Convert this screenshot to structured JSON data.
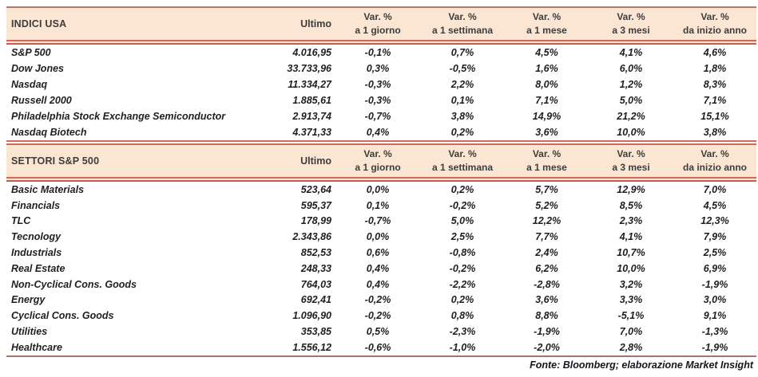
{
  "colors": {
    "band_bg": "#fbe5d3",
    "line_red": "#d2675a",
    "line_muted": "#b1786f",
    "text": "#1f1f1f"
  },
  "columns": {
    "ultimo": "Ultimo",
    "var_top": "Var. %",
    "var_subs": [
      "a 1 giorno",
      "a 1 settimana",
      "a 1 mese",
      "a 3 mesi",
      "da inizio anno"
    ]
  },
  "tables": [
    {
      "title": "INDICI USA",
      "rows": [
        {
          "label": "S&P 500",
          "ultimo": "4.016,95",
          "vars": [
            "-0,1%",
            "0,7%",
            "4,5%",
            "4,1%",
            "4,6%"
          ]
        },
        {
          "label": "Dow Jones",
          "ultimo": "33.733,96",
          "vars": [
            "0,3%",
            "-0,5%",
            "1,6%",
            "6,0%",
            "1,8%"
          ]
        },
        {
          "label": "Nasdaq",
          "ultimo": "11.334,27",
          "vars": [
            "-0,3%",
            "2,2%",
            "8,0%",
            "1,2%",
            "8,3%"
          ]
        },
        {
          "label": "Russell 2000",
          "ultimo": "1.885,61",
          "vars": [
            "-0,3%",
            "0,1%",
            "7,1%",
            "5,0%",
            "7,1%"
          ]
        },
        {
          "label": "Philadelphia Stock Exchange Semiconductor",
          "ultimo": "2.913,74",
          "vars": [
            "-0,7%",
            "3,8%",
            "14,9%",
            "21,2%",
            "15,1%"
          ]
        },
        {
          "label": "Nasdaq Biotech",
          "ultimo": "4.371,33",
          "vars": [
            "0,4%",
            "0,2%",
            "3,6%",
            "10,0%",
            "3,8%"
          ]
        }
      ]
    },
    {
      "title": "SETTORI S&P 500",
      "rows": [
        {
          "label": "Basic Materials",
          "ultimo": "523,64",
          "vars": [
            "0,0%",
            "0,2%",
            "5,7%",
            "12,9%",
            "7,0%"
          ]
        },
        {
          "label": "Financials",
          "ultimo": "595,37",
          "vars": [
            "0,1%",
            "-0,2%",
            "5,2%",
            "8,5%",
            "4,5%"
          ]
        },
        {
          "label": "TLC",
          "ultimo": "178,99",
          "vars": [
            "-0,7%",
            "5,0%",
            "12,2%",
            "2,3%",
            "12,3%"
          ]
        },
        {
          "label": "Tecnology",
          "ultimo": "2.343,86",
          "vars": [
            "0,0%",
            "2,5%",
            "7,7%",
            "4,1%",
            "7,9%"
          ]
        },
        {
          "label": "Industrials",
          "ultimo": "852,53",
          "vars": [
            "0,6%",
            "-0,8%",
            "2,4%",
            "10,7%",
            "2,5%"
          ]
        },
        {
          "label": "Real Estate",
          "ultimo": "248,33",
          "vars": [
            "0,4%",
            "-0,2%",
            "6,2%",
            "10,0%",
            "6,9%"
          ]
        },
        {
          "label": "Non-Cyclical Cons. Goods",
          "ultimo": "764,03",
          "vars": [
            "0,4%",
            "-2,2%",
            "-2,8%",
            "3,2%",
            "-1,9%"
          ]
        },
        {
          "label": "Energy",
          "ultimo": "692,41",
          "vars": [
            "-0,2%",
            "0,2%",
            "3,6%",
            "3,3%",
            "3,0%"
          ]
        },
        {
          "label": "Cyclical Cons. Goods",
          "ultimo": "1.096,90",
          "vars": [
            "-0,2%",
            "0,8%",
            "8,8%",
            "-5,1%",
            "9,1%"
          ]
        },
        {
          "label": "Utilities",
          "ultimo": "353,85",
          "vars": [
            "0,5%",
            "-2,3%",
            "-1,9%",
            "7,0%",
            "-1,3%"
          ]
        },
        {
          "label": "Healthcare",
          "ultimo": "1.556,12",
          "vars": [
            "-0,6%",
            "-1,0%",
            "-2,0%",
            "2,8%",
            "-1,9%"
          ]
        }
      ]
    }
  ],
  "footer": {
    "source": "Fonte: Bloomberg; elaborazione Market Insight"
  }
}
